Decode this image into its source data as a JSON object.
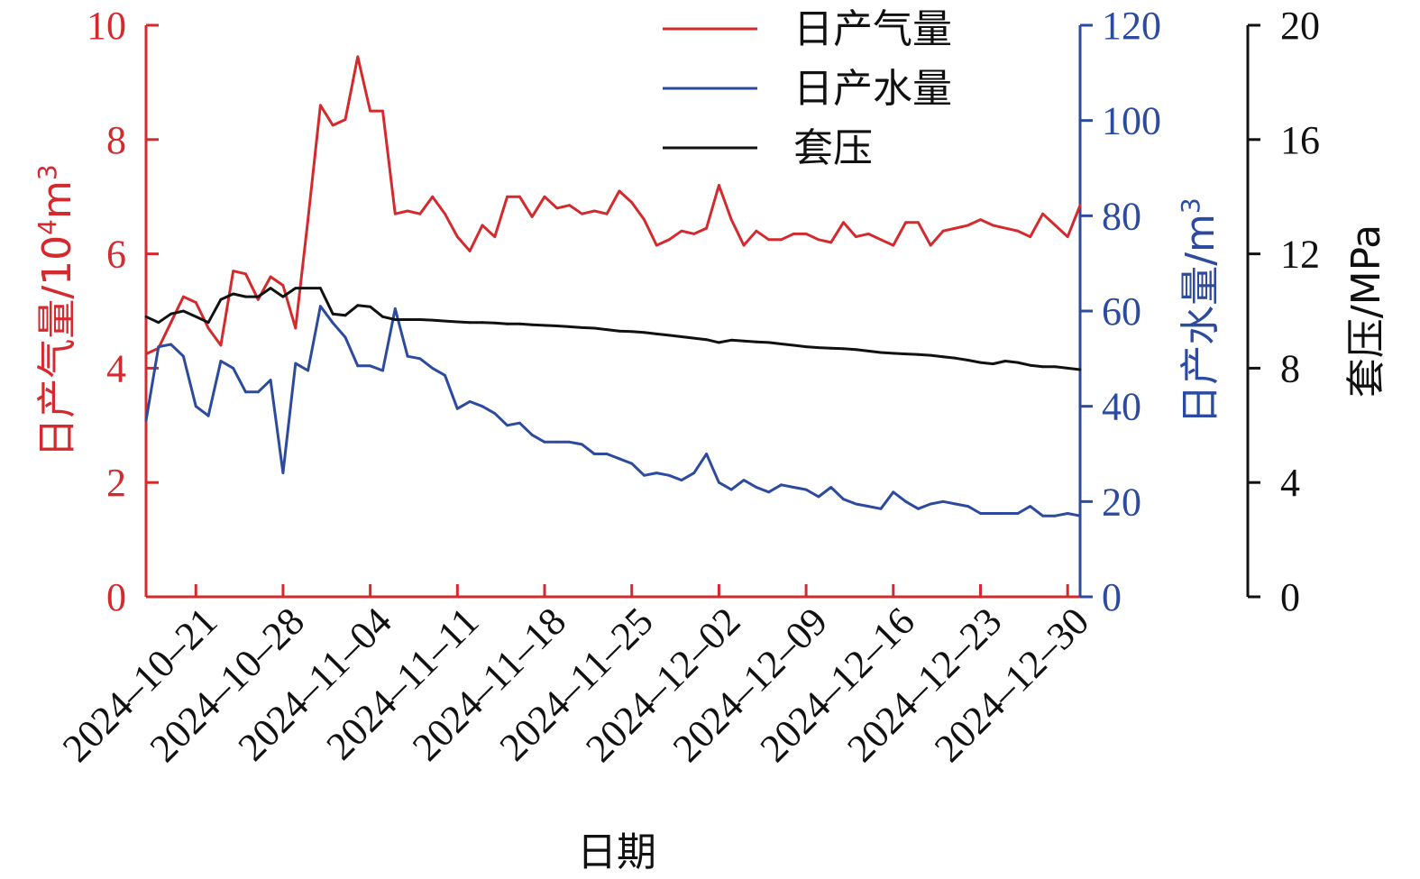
{
  "chart_data": {
    "type": "line",
    "xlabel": "日期",
    "x_tick_labels": [
      "2024-10-21",
      "2024-10-28",
      "2024-11-04",
      "2024-11-11",
      "2024-11-18",
      "2024-11-25",
      "2024-12-02",
      "2024-12-09",
      "2024-12-16",
      "2024-12-23",
      "2024-12-30"
    ],
    "x": [
      "2024-10-17",
      "2024-10-18",
      "2024-10-19",
      "2024-10-20",
      "2024-10-21",
      "2024-10-22",
      "2024-10-23",
      "2024-10-24",
      "2024-10-25",
      "2024-10-26",
      "2024-10-27",
      "2024-10-28",
      "2024-10-29",
      "2024-10-30",
      "2024-10-31",
      "2024-11-01",
      "2024-11-02",
      "2024-11-03",
      "2024-11-04",
      "2024-11-05",
      "2024-11-06",
      "2024-11-07",
      "2024-11-08",
      "2024-11-09",
      "2024-11-10",
      "2024-11-11",
      "2024-11-12",
      "2024-11-13",
      "2024-11-14",
      "2024-11-15",
      "2024-11-16",
      "2024-11-17",
      "2024-11-18",
      "2024-11-19",
      "2024-11-20",
      "2024-11-21",
      "2024-11-22",
      "2024-11-23",
      "2024-11-24",
      "2024-11-25",
      "2024-11-26",
      "2024-11-27",
      "2024-11-28",
      "2024-11-29",
      "2024-11-30",
      "2024-12-01",
      "2024-12-02",
      "2024-12-03",
      "2024-12-04",
      "2024-12-05",
      "2024-12-06",
      "2024-12-07",
      "2024-12-08",
      "2024-12-09",
      "2024-12-10",
      "2024-12-11",
      "2024-12-12",
      "2024-12-13",
      "2024-12-14",
      "2024-12-15",
      "2024-12-16",
      "2024-12-17",
      "2024-12-18",
      "2024-12-19",
      "2024-12-20",
      "2024-12-21",
      "2024-12-22",
      "2024-12-23",
      "2024-12-24",
      "2024-12-25",
      "2024-12-26",
      "2024-12-27",
      "2024-12-28",
      "2024-12-29",
      "2024-12-30",
      "2024-12-31"
    ],
    "xlim": [
      "2024-10-17",
      "2024-12-31"
    ],
    "axes": {
      "left": {
        "label": "日产气量/10",
        "label_sup": "4",
        "label_tail": "m",
        "label_sup2": "3",
        "ylim": [
          0,
          10
        ],
        "ticks": [
          "0",
          "2",
          "4",
          "6",
          "8",
          "10"
        ],
        "color": "#d42a2e"
      },
      "right1": {
        "label": "日产水量/m",
        "label_sup": "3",
        "ylim": [
          0,
          120
        ],
        "ticks": [
          "0",
          "20",
          "40",
          "60",
          "80",
          "100",
          "120"
        ],
        "color": "#2c4a9e"
      },
      "right2": {
        "label": "套压/MPa",
        "ylim": [
          0,
          20
        ],
        "ticks": [
          "0",
          "4",
          "8",
          "12",
          "16",
          "20"
        ],
        "color": "#111111"
      }
    },
    "legend_position": "top-right",
    "grid": false,
    "series": [
      {
        "name": "日产气量",
        "axis": "left",
        "color": "#d42a2e",
        "values": [
          4.25,
          4.35,
          4.8,
          5.25,
          5.15,
          4.7,
          4.4,
          5.7,
          5.65,
          5.2,
          5.6,
          5.45,
          4.7,
          6.6,
          8.6,
          8.25,
          8.35,
          9.45,
          8.5,
          8.5,
          6.7,
          6.75,
          6.7,
          7.0,
          6.7,
          6.3,
          6.05,
          6.5,
          6.3,
          7.0,
          7.0,
          6.65,
          7.0,
          6.8,
          6.85,
          6.7,
          6.75,
          6.7,
          7.1,
          6.9,
          6.6,
          6.15,
          6.25,
          6.4,
          6.35,
          6.45,
          7.2,
          6.6,
          6.15,
          6.4,
          6.25,
          6.25,
          6.35,
          6.35,
          6.25,
          6.2,
          6.55,
          6.3,
          6.35,
          6.25,
          6.15,
          6.55,
          6.55,
          6.15,
          6.4,
          6.45,
          6.5,
          6.6,
          6.5,
          6.45,
          6.4,
          6.3,
          6.7,
          6.5,
          6.3,
          6.85
        ]
      },
      {
        "name": "日产水量",
        "axis": "right1",
        "color": "#2c4a9e",
        "values": [
          37,
          52.5,
          53,
          50.5,
          40,
          38,
          49.5,
          48,
          43,
          43,
          45.5,
          26,
          49,
          47.5,
          61,
          57.5,
          54.5,
          48.5,
          48.5,
          47.5,
          60.5,
          50.5,
          50,
          48,
          46.5,
          39.5,
          41,
          40,
          38.5,
          36,
          36.5,
          34,
          32.5,
          32.5,
          32.5,
          32,
          30,
          30,
          29,
          28,
          25.5,
          26,
          25.5,
          24.5,
          26,
          30,
          24,
          22.5,
          24.5,
          23,
          22,
          23.5,
          23,
          22.5,
          21,
          23,
          20.5,
          19.5,
          19,
          18.5,
          22,
          20,
          18.5,
          19.5,
          20,
          19.5,
          19,
          17.5,
          17.5,
          17.5,
          17.5,
          19,
          17,
          17,
          17.5,
          17
        ]
      },
      {
        "name": "套压",
        "axis": "right2",
        "color": "#111111",
        "values": [
          9.8,
          9.6,
          9.9,
          10.0,
          9.8,
          9.6,
          10.4,
          10.6,
          10.5,
          10.5,
          10.8,
          10.5,
          10.8,
          10.8,
          10.8,
          9.9,
          9.85,
          10.2,
          10.15,
          9.8,
          9.7,
          9.7,
          9.7,
          9.68,
          9.65,
          9.62,
          9.6,
          9.6,
          9.58,
          9.55,
          9.55,
          9.52,
          9.5,
          9.48,
          9.45,
          9.42,
          9.4,
          9.35,
          9.3,
          9.28,
          9.25,
          9.2,
          9.15,
          9.1,
          9.05,
          9.0,
          8.9,
          8.98,
          8.95,
          8.92,
          8.9,
          8.85,
          8.8,
          8.75,
          8.72,
          8.7,
          8.68,
          8.65,
          8.6,
          8.55,
          8.52,
          8.5,
          8.48,
          8.45,
          8.4,
          8.35,
          8.28,
          8.2,
          8.15,
          8.25,
          8.2,
          8.1,
          8.05,
          8.05,
          8.0,
          7.95
        ]
      }
    ]
  }
}
